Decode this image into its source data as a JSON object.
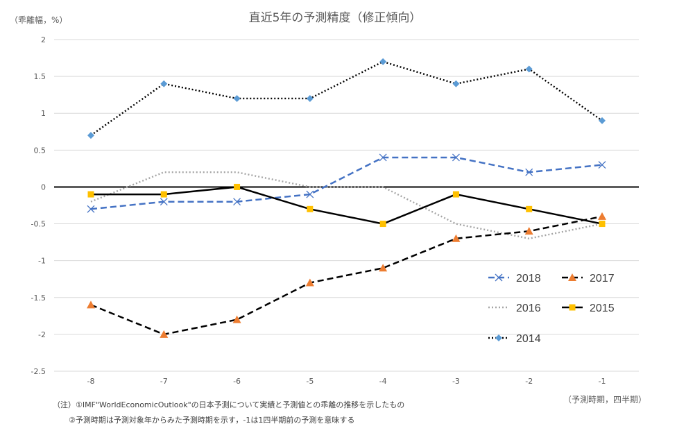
{
  "chart_data": {
    "type": "line",
    "title": "直近5年の予測精度（修正傾向）",
    "ylabel": "（乖離幅，%）",
    "xlabel": "（予測時期，四半期）",
    "x": [
      -8,
      -7,
      -6,
      -5,
      -4,
      -3,
      -2,
      -1
    ],
    "x_tick_labels": [
      "-8",
      "-7",
      "-6",
      "-5",
      "-4",
      "-3",
      "-2",
      "-1"
    ],
    "ylim": [
      -2.5,
      2
    ],
    "y_ticks": [
      2,
      1.5,
      1,
      0.5,
      0,
      -0.5,
      -1,
      -1.5,
      -2,
      -2.5
    ],
    "y_tick_labels": [
      "2",
      "1.5",
      "1",
      "0.5",
      "0",
      "-0.5",
      "-1",
      "-1.5",
      "-2",
      "-2.5"
    ],
    "grid": true,
    "legend_position": "bottom-right",
    "series": [
      {
        "name": "2018",
        "values": [
          -0.3,
          -0.2,
          -0.2,
          -0.1,
          0.4,
          0.4,
          0.2,
          0.3
        ],
        "color": "#4472C4",
        "line": "dashed",
        "marker": "x"
      },
      {
        "name": "2017",
        "values": [
          -1.6,
          -2.0,
          -1.8,
          -1.3,
          -1.1,
          -0.7,
          -0.6,
          -0.4
        ],
        "color": "#000000",
        "marker_color": "#ED7D31",
        "line": "dashed",
        "marker": "triangle"
      },
      {
        "name": "2016",
        "values": [
          -0.2,
          0.2,
          0.2,
          0.0,
          0.0,
          -0.5,
          -0.7,
          -0.5
        ],
        "color": "#A5A5A5",
        "line": "dotted",
        "marker": "none"
      },
      {
        "name": "2015",
        "values": [
          -0.1,
          -0.1,
          0.0,
          -0.3,
          -0.5,
          -0.1,
          -0.3,
          -0.5
        ],
        "color": "#000000",
        "marker_color": "#FFC000",
        "line": "solid",
        "marker": "square"
      },
      {
        "name": "2014",
        "values": [
          0.7,
          1.4,
          1.2,
          1.2,
          1.7,
          1.4,
          1.6,
          0.9
        ],
        "color": "#000000",
        "marker_color": "#5B9BD5",
        "line": "dotted",
        "marker": "diamond"
      }
    ],
    "notes": [
      "（注）①IMF\"WorldEconomicOutlook\"の日本予測について実績と予測値との乖離の推移を示したもの",
      "②予測時期は予測対象年からみた予測時期を示す，-1は1四半期前の予測を意味する"
    ]
  }
}
